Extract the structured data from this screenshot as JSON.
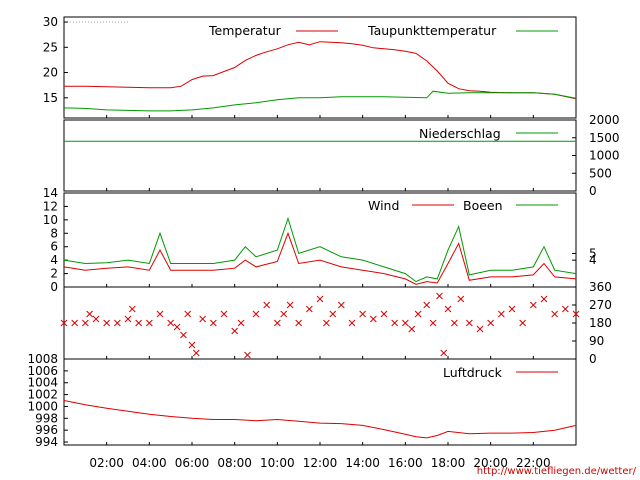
{
  "credit": "http://www.tiefliegen.de/wetter/",
  "x_axis": {
    "tick_labels": [
      "02:00",
      "04:00",
      "06:00",
      "08:00",
      "10:00",
      "12:00",
      "14:00",
      "16:00",
      "18:00",
      "20:00",
      "22:00"
    ],
    "tick_hours": [
      2,
      4,
      6,
      8,
      10,
      12,
      14,
      16,
      18,
      20,
      22
    ],
    "range_hours": [
      0,
      24
    ]
  },
  "colors": {
    "red": "#dd0000",
    "green": "#009900",
    "axis": "#000000",
    "grid": "#a0a0a0"
  },
  "chart_data": [
    {
      "id": "temperature",
      "type": "line",
      "ylim": [
        11,
        31
      ],
      "left_ticks": [
        15,
        20,
        25,
        30
      ],
      "legend_placement": "top-right",
      "series": [
        {
          "name": "Temperatur",
          "color": "#dd0000",
          "x": [
            0,
            1,
            2,
            3,
            4,
            5,
            5.5,
            6,
            6.5,
            7,
            7.5,
            8,
            8.5,
            9,
            9.5,
            10,
            10.5,
            11,
            11.5,
            12,
            12.5,
            13,
            13.5,
            14,
            14.5,
            15,
            15.5,
            16,
            16.5,
            17,
            17.5,
            18,
            18.5,
            19,
            19.5,
            20,
            21,
            22,
            23,
            24
          ],
          "values": [
            17.3,
            17.3,
            17.2,
            17.1,
            17.0,
            17.0,
            17.3,
            18.6,
            19.3,
            19.4,
            20.2,
            21.0,
            22.4,
            23.4,
            24.1,
            24.7,
            25.5,
            26.0,
            25.5,
            26.1,
            26.0,
            25.9,
            25.7,
            25.4,
            24.9,
            24.7,
            24.5,
            24.2,
            23.8,
            22.3,
            20.3,
            17.9,
            16.8,
            16.4,
            16.3,
            16.1,
            16.0,
            16.0,
            15.7,
            14.8
          ]
        },
        {
          "name": "Taupunkttemperatur",
          "color": "#009900",
          "x": [
            0,
            1,
            2,
            3,
            4,
            5,
            6,
            7,
            8,
            9,
            10,
            11,
            12,
            13,
            14,
            15,
            16,
            17,
            17.3,
            18,
            19,
            20,
            21,
            22,
            23,
            24
          ],
          "values": [
            13.0,
            12.9,
            12.6,
            12.5,
            12.4,
            12.4,
            12.6,
            13.0,
            13.6,
            14.0,
            14.6,
            15.0,
            15.0,
            15.2,
            15.2,
            15.2,
            15.1,
            15.0,
            16.3,
            15.9,
            16.0,
            16.0,
            16.0,
            16.0,
            15.7,
            14.9
          ]
        }
      ]
    },
    {
      "id": "precipitation",
      "type": "line",
      "ylim": [
        0,
        2000
      ],
      "right_ticks": [
        0,
        500,
        1000,
        1500,
        2000
      ],
      "legend_placement": "top-right",
      "series": [
        {
          "name": "Niederschlag",
          "color": "#009900",
          "x": [
            0,
            24
          ],
          "values": [
            1400,
            1400
          ]
        }
      ]
    },
    {
      "id": "wind",
      "type": "line",
      "ylim": [
        0,
        14
      ],
      "left_ticks": [
        0,
        2,
        4,
        6,
        8,
        10,
        12,
        14
      ],
      "right_ticks": [
        4,
        5
      ],
      "legend_placement": "top-right",
      "series": [
        {
          "name": "Wind",
          "color": "#dd0000",
          "x": [
            0,
            1,
            2,
            3,
            4,
            4.5,
            5,
            6,
            7,
            8,
            8.5,
            9,
            10,
            10.5,
            11,
            12,
            13,
            14,
            15,
            16,
            16.5,
            17,
            17.5,
            18,
            18.5,
            19,
            20,
            21,
            22,
            22.5,
            23,
            24
          ],
          "values": [
            3.0,
            2.5,
            2.8,
            3.0,
            2.5,
            5.5,
            2.5,
            2.5,
            2.5,
            2.8,
            4.0,
            3.0,
            3.8,
            8.0,
            3.5,
            4.0,
            3.0,
            2.5,
            2.0,
            1.2,
            0.4,
            0.8,
            0.6,
            3.5,
            6.5,
            1.0,
            1.5,
            1.5,
            1.8,
            3.5,
            1.5,
            1.2
          ]
        },
        {
          "name": "Boeen",
          "color": "#009900",
          "x": [
            0,
            1,
            2,
            3,
            4,
            4.5,
            5,
            6,
            7,
            8,
            8.5,
            9,
            10,
            10.5,
            11,
            12,
            13,
            14,
            15,
            16,
            16.5,
            17,
            17.5,
            18,
            18.5,
            19,
            20,
            21,
            22,
            22.5,
            23,
            24
          ],
          "values": [
            4.0,
            3.5,
            3.6,
            4.0,
            3.5,
            8.0,
            3.5,
            3.5,
            3.5,
            4.0,
            6.0,
            4.5,
            5.5,
            10.2,
            5.0,
            6.0,
            4.5,
            4.0,
            3.0,
            2.0,
            0.8,
            1.5,
            1.2,
            5.5,
            9.0,
            1.8,
            2.5,
            2.5,
            3.0,
            6.0,
            2.5,
            2.0
          ]
        }
      ]
    },
    {
      "id": "wind_direction",
      "type": "scatter",
      "ylim": [
        0,
        360
      ],
      "right_ticks": [
        0,
        90,
        180,
        270,
        360
      ],
      "series": [
        {
          "name": "",
          "color": "#dd0000",
          "x": [
            0,
            0.5,
            1,
            1.2,
            1.5,
            2,
            2.5,
            3,
            3.2,
            3.5,
            4,
            4.5,
            5,
            5.3,
            5.6,
            5.8,
            6,
            6.2,
            6.5,
            7,
            7.5,
            8,
            8.3,
            8.6,
            9,
            9.5,
            10,
            10.3,
            10.6,
            11,
            11.5,
            12,
            12.3,
            12.6,
            13,
            13.5,
            14,
            14.5,
            15,
            15.5,
            16,
            16.3,
            16.6,
            17,
            17.3,
            17.6,
            17.8,
            18,
            18.3,
            18.6,
            19,
            19.5,
            20,
            20.5,
            21,
            21.5,
            22,
            22.5,
            23,
            23.5,
            24
          ],
          "values": [
            180,
            180,
            180,
            225,
            200,
            180,
            180,
            200,
            250,
            180,
            180,
            225,
            180,
            160,
            120,
            225,
            70,
            30,
            200,
            180,
            225,
            140,
            180,
            20,
            225,
            270,
            180,
            225,
            270,
            180,
            250,
            300,
            180,
            225,
            270,
            180,
            225,
            200,
            225,
            180,
            180,
            150,
            225,
            270,
            180,
            315,
            30,
            250,
            180,
            300,
            180,
            150,
            180,
            225,
            250,
            180,
            270,
            300,
            225,
            250,
            225
          ]
        }
      ]
    },
    {
      "id": "pressure",
      "type": "line",
      "ylim": [
        993.5,
        1008
      ],
      "left_ticks": [
        994,
        996,
        998,
        1000,
        1002,
        1004,
        1006,
        1008
      ],
      "legend_placement": "top-right",
      "series": [
        {
          "name": "Luftdruck",
          "color": "#dd0000",
          "x": [
            0,
            1,
            2,
            3,
            4,
            5,
            6,
            7,
            8,
            9,
            10,
            11,
            12,
            13,
            14,
            15,
            16,
            16.5,
            17,
            17.5,
            18,
            19,
            20,
            21,
            22,
            23,
            24
          ],
          "values": [
            1001.0,
            1000.3,
            999.7,
            999.2,
            998.7,
            998.3,
            998.0,
            997.8,
            997.8,
            997.6,
            997.8,
            997.5,
            997.2,
            997.1,
            996.8,
            996.1,
            995.3,
            994.9,
            994.7,
            995.1,
            995.8,
            995.4,
            995.5,
            995.5,
            995.6,
            996.0,
            996.8
          ]
        }
      ]
    }
  ]
}
